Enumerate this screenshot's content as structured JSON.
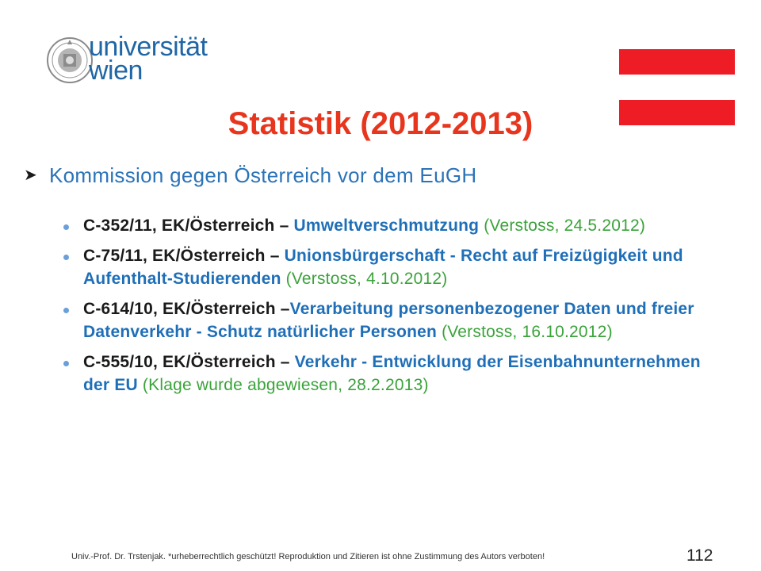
{
  "logo": {
    "line1": "universität",
    "line2": "wien"
  },
  "colors": {
    "flag_red": "#ee1c25",
    "title": "#e8361e",
    "heading_blue": "#2b73b8",
    "topic_blue": "#1f6fb8",
    "status_green": "#3aa33a"
  },
  "title": "Statistik (2012-2013)",
  "heading": "Kommission gegen Österreich vor dem EuGH",
  "items": [
    {
      "case": "C-352/11, EK/Österreich",
      "sep": " – ",
      "topic": "Umweltverschmutzung",
      "status": " (Verstoss, 24.5.2012)"
    },
    {
      "case": "C-75/11, EK/Österreich",
      "sep": " – ",
      "topic": "Unionsbürgerschaft - Recht auf Freizügigkeit und Aufenthalt-Studierenden",
      "status": " (Verstoss, 4.10.2012)"
    },
    {
      "case": "C-614/10, EK/Österreich",
      "sep": " –",
      "topic": "Verarbeitung personenbezogener Daten und freier Datenverkehr - Schutz natürlicher Personen",
      "status": " (Verstoss, 16.10.2012)"
    },
    {
      "case": "C-555/10, EK/Österreich",
      "sep": " – ",
      "topic": "Verkehr - Entwicklung der Eisenbahnunternehmen der EU",
      "status": " (Klage wurde abgewiesen, 28.2.2013)"
    }
  ],
  "footer": "Univ.-Prof. Dr. Trstenjak.   *urheberrechtlich  geschützt! Reproduktion und Zitieren ist ohne Zustimmung des Autors verboten!",
  "page_number": "112"
}
